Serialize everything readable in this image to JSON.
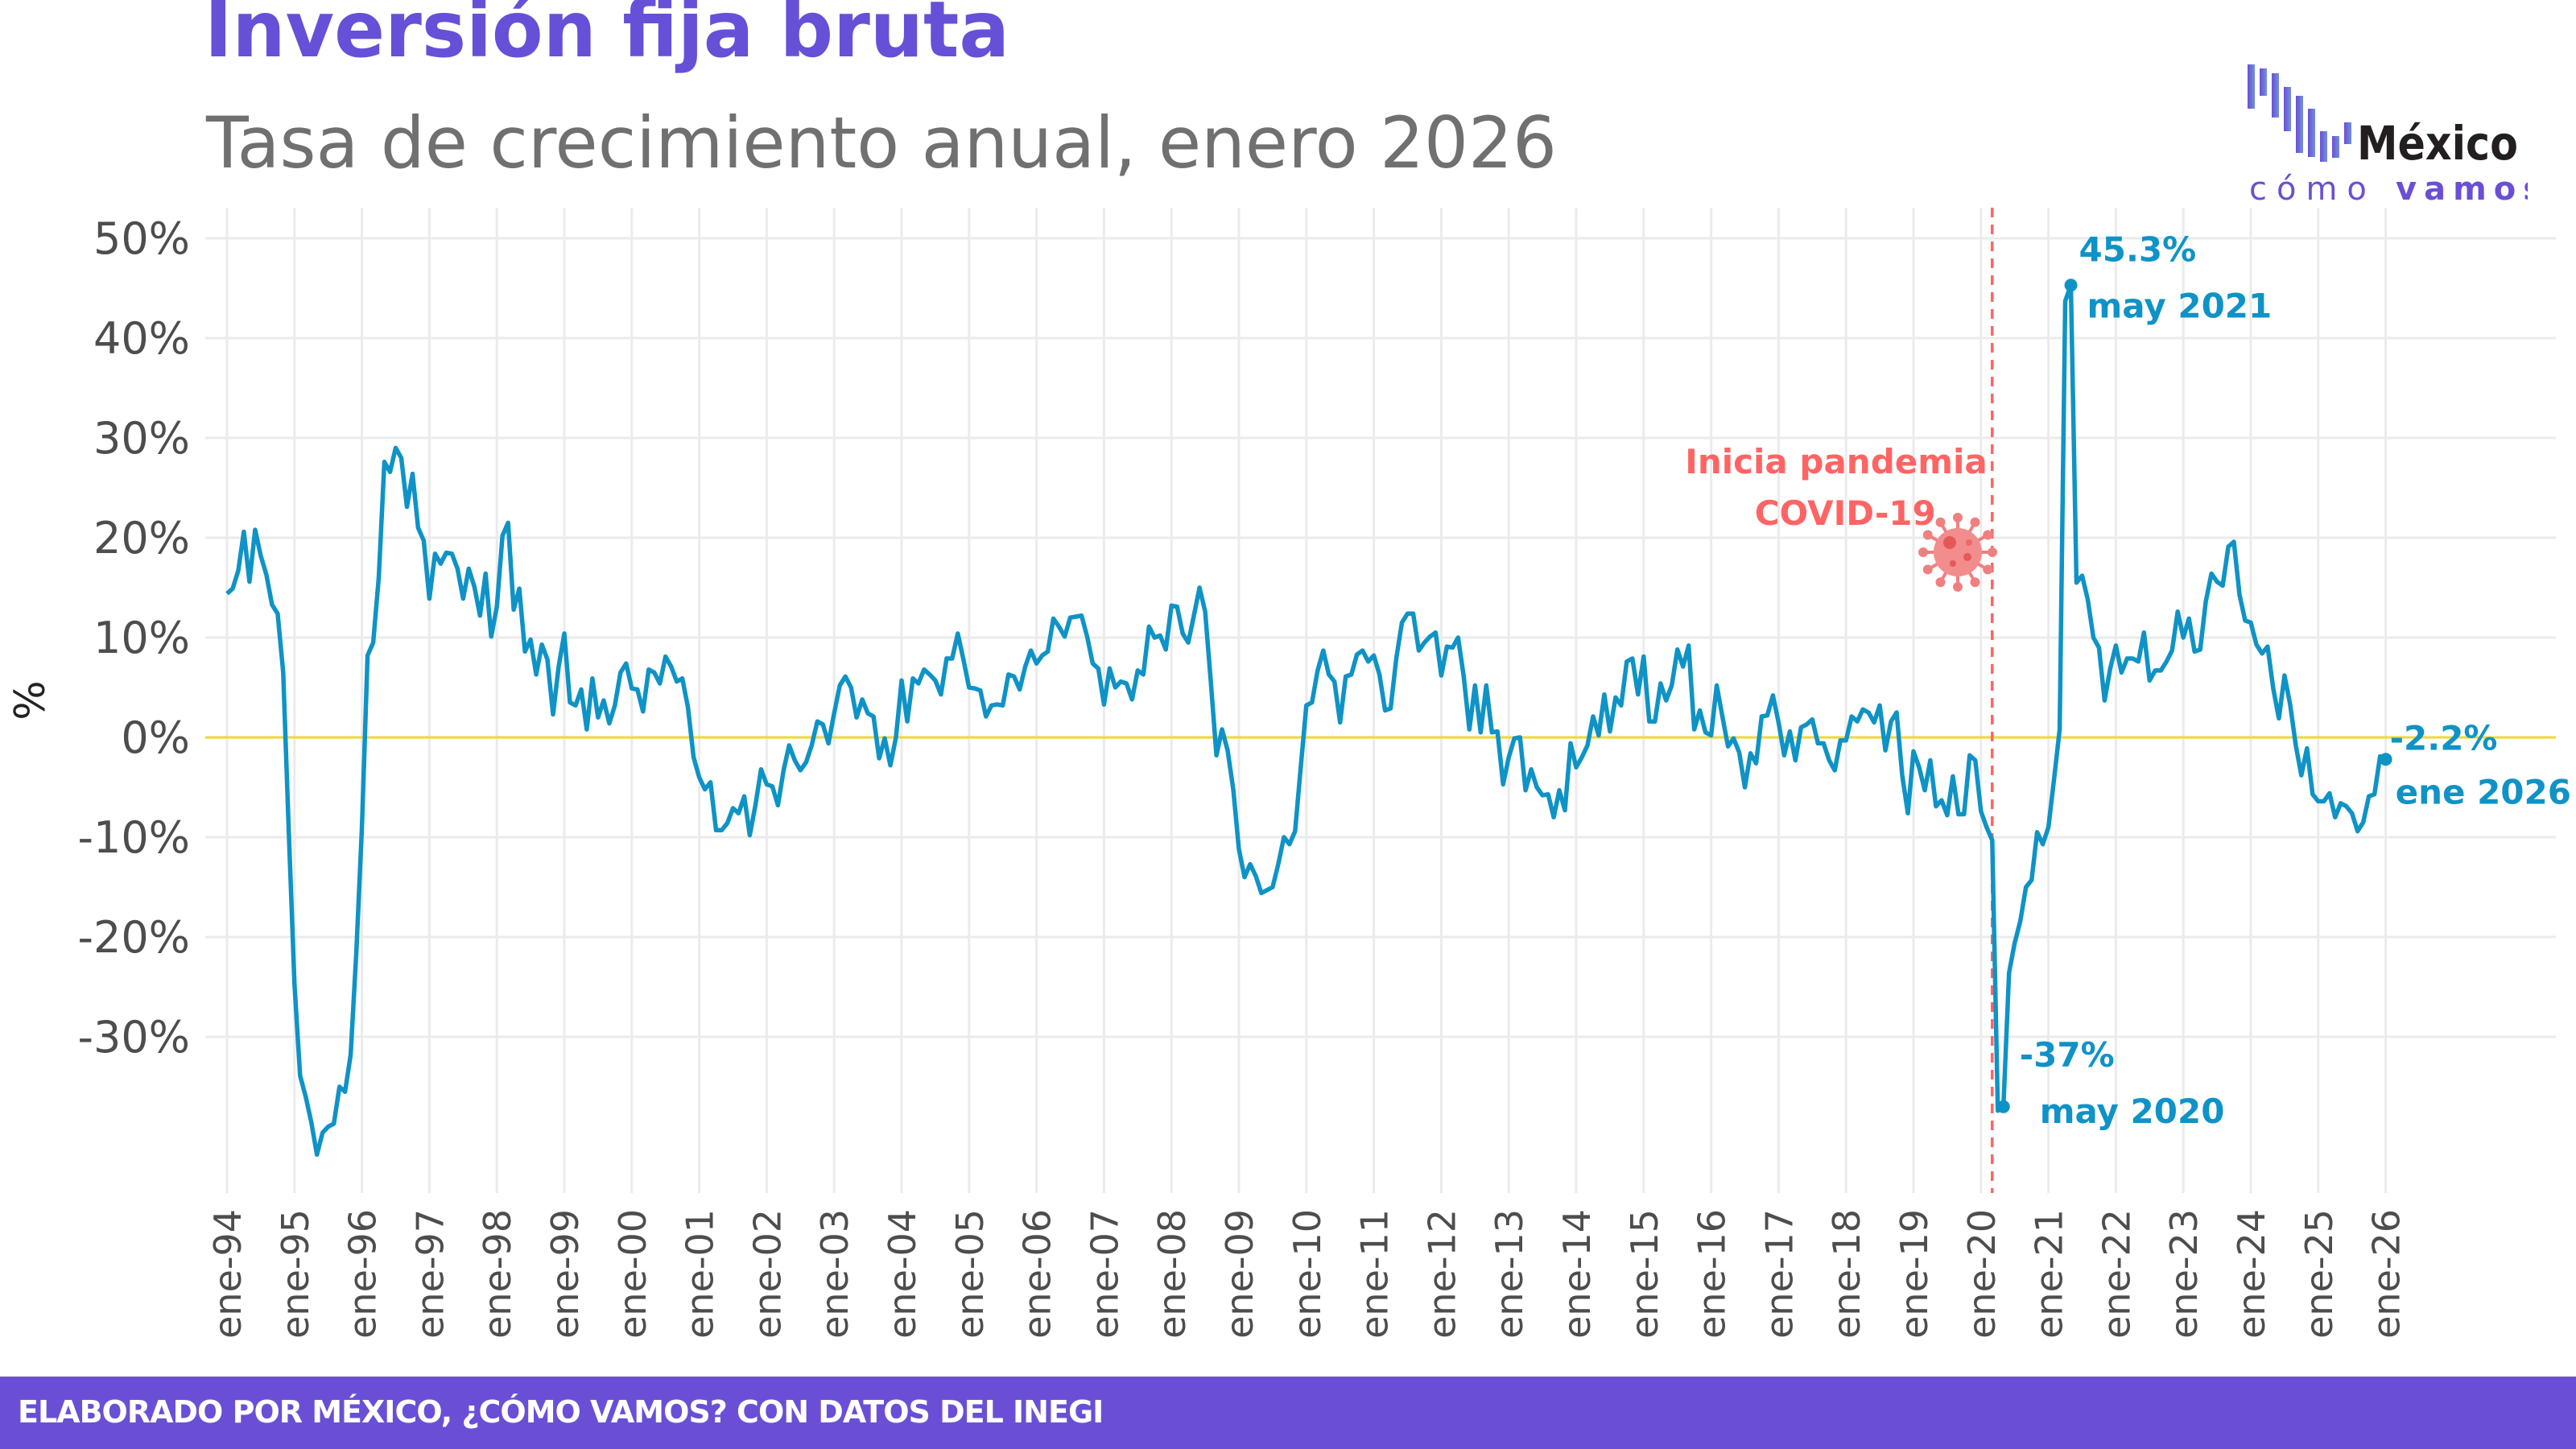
{
  "header": {
    "title": "Inversión fija bruta",
    "subtitle": "Tasa de crecimiento anual, enero 2026"
  },
  "logo": {
    "word1": "México",
    "word2a": "cómo",
    "word2b": "vamos"
  },
  "footer": {
    "source": "ELABORADO POR MÉXICO, ¿CÓMO VAMOS? CON DATOS DEL INEGI"
  },
  "colors": {
    "title": "#6650d8",
    "subtitle": "#707070",
    "line": "#0f93c6",
    "zero_line": "#ecd93a",
    "pandemic": "#ff6464",
    "footer": "#6a4fd6",
    "grid": "#ebebeb"
  },
  "chart_data": {
    "type": "line",
    "title": "Inversión fija bruta",
    "subtitle": "Tasa de crecimiento anual, enero 2026",
    "ylabel": "%",
    "xlabel": "",
    "frequency": "monthly",
    "ylim": [
      -45,
      52
    ],
    "yticks": [
      50,
      40,
      30,
      20,
      10,
      0,
      -10,
      -20,
      -30
    ],
    "ytick_labels": [
      "50%",
      "40%",
      "30%",
      "20%",
      "10%",
      "0%",
      "-10%",
      "-20%",
      "-30%"
    ],
    "xtick_labels": [
      "ene-94",
      "ene-95",
      "ene-96",
      "ene-97",
      "ene-98",
      "ene-99",
      "ene-00",
      "ene-01",
      "ene-02",
      "ene-03",
      "ene-04",
      "ene-05",
      "ene-06",
      "ene-07",
      "ene-08",
      "ene-09",
      "ene-10",
      "ene-11",
      "ene-12",
      "ene-13",
      "ene-14",
      "ene-15",
      "ene-16",
      "ene-17",
      "ene-18",
      "ene-19",
      "ene-20",
      "ene-21",
      "ene-22",
      "ene-23",
      "ene-24",
      "ene-25",
      "ene-26"
    ],
    "grid": true,
    "values_by_year": {
      "1994": [
        14.4,
        14.9,
        16.7,
        20.6,
        15.6,
        20.8,
        18.2,
        16.3,
        13.3,
        12.4,
        6.5,
        -9.6
      ],
      "1995": [
        -24.7,
        -33.9,
        -36,
        -38.6,
        -41.8,
        -39.6,
        -39,
        -38.7,
        -35,
        -35.5,
        -31.8,
        -21.6
      ],
      "1996": [
        -9,
        8.2,
        9.5,
        16,
        27.6,
        26.6,
        29,
        28,
        23.1,
        26.4,
        21,
        19.7
      ],
      "1997": [
        13.9,
        18.4,
        17.4,
        18.5,
        18.4,
        16.9,
        13.9,
        16.9,
        15.1,
        12.2,
        16.4,
        10.1
      ],
      "1998": [
        13.1,
        20.2,
        21.5,
        12.8,
        14.9,
        8.6,
        9.8,
        6.3,
        9.3,
        7.8,
        2.3,
        7.1
      ],
      "1999": [
        10.4,
        3.5,
        3.2,
        4.8,
        0.8,
        5.9,
        2,
        3.7,
        1.4,
        3.2,
        6.5,
        7.4
      ],
      "2000": [
        4.9,
        4.8,
        2.6,
        6.8,
        6.5,
        5.4,
        8.1,
        7.1,
        5.6,
        5.9,
        3,
        -2
      ],
      "2001": [
        -4,
        -5.2,
        -4.5,
        -9.3,
        -9.3,
        -8.6,
        -7.1,
        -7.6,
        -5.9,
        -9.8,
        -6.8,
        -3.2
      ],
      "2002": [
        -4.7,
        -4.9,
        -6.8,
        -3.3,
        -0.8,
        -2.3,
        -3.3,
        -2.5,
        -0.8,
        1.6,
        1.3,
        -0.6
      ],
      "2003": [
        2.4,
        5.2,
        6.1,
        5,
        2,
        3.8,
        2.4,
        2.1,
        -2.1,
        -0.1,
        -2.8,
        0
      ],
      "2004": [
        5.7,
        1.6,
        5.9,
        5.4,
        6.8,
        6.3,
        5.7,
        4.3,
        7.9,
        7.9,
        10.4,
        7.8
      ],
      "2005": [
        5,
        4.9,
        4.7,
        2.1,
        3.2,
        3.3,
        3.2,
        6.3,
        6.1,
        4.8,
        7.1,
        8.7
      ],
      "2006": [
        7.4,
        8.2,
        8.6,
        11.9,
        11.1,
        10.1,
        12,
        12.1,
        12.2,
        10.1,
        7.4,
        6.9
      ],
      "2007": [
        3.3,
        6.9,
        5,
        5.6,
        5.4,
        3.8,
        6.7,
        6.3,
        11.1,
        10,
        10.2,
        8.8
      ],
      "2008": [
        13.2,
        13.1,
        10.4,
        9.5,
        12.2,
        15,
        12.6,
        5.6,
        -1.8,
        0.8,
        -1.3,
        -5.2
      ],
      "2009": [
        -11.2,
        -14,
        -12.7,
        -13.9,
        -15.6,
        -15.3,
        -15,
        -12.7,
        -10,
        -10.7,
        -9.4,
        -3
      ],
      "2010": [
        3.2,
        3.5,
        6.7,
        8.7,
        6.3,
        5.6,
        1.5,
        6.1,
        6.3,
        8.3,
        8.7,
        7.6
      ],
      "2011": [
        8.2,
        6.3,
        2.7,
        2.9,
        7.9,
        11.5,
        12.4,
        12.4,
        8.7,
        9.5,
        10.1,
        10.5
      ],
      "2012": [
        6.2,
        9.1,
        9,
        10,
        6.1,
        0.8,
        5.2,
        0.5,
        5.2,
        0.5,
        0.6,
        -4.7
      ],
      "2013": [
        -2,
        -0.1,
        0,
        -5.3,
        -3.2,
        -5,
        -5.8,
        -5.7,
        -8,
        -5.3,
        -7.3,
        -0.6
      ],
      "2014": [
        -3,
        -2,
        -0.8,
        2.1,
        0.2,
        4.3,
        0.6,
        4,
        3.2,
        7.6,
        7.9,
        4.3
      ],
      "2015": [
        8.1,
        1.6,
        1.6,
        5.4,
        3.7,
        5.2,
        8.8,
        7.1,
        9.2,
        0.8,
        2.7,
        0.5
      ],
      "2016": [
        0.2,
        5.2,
        2.1,
        -0.9,
        -0.1,
        -1.5,
        -5,
        -1.6,
        -2.6,
        2.1,
        2.2,
        4.2
      ],
      "2017": [
        1.5,
        -1.8,
        0.6,
        -2.3,
        1,
        1.3,
        1.8,
        -0.6,
        -0.6,
        -2.3,
        -3.3,
        -0.3
      ],
      "2018": [
        -0.3,
        2.1,
        1.6,
        2.8,
        2.5,
        1.5,
        3.2,
        -1.3,
        1.6,
        2.5,
        -3.8,
        -7.6
      ],
      "2019": [
        -1.4,
        -3,
        -5.3,
        -2.3,
        -6.9,
        -6.3,
        -7.8,
        -3.9,
        -7.7,
        -7.7,
        -1.8,
        -2.3
      ],
      "2020": [
        -7.4,
        -9,
        -10.3,
        -37.4,
        -37,
        -23.6,
        -20.6,
        -18.4,
        -15,
        -14.3,
        -9.5,
        -10.7
      ],
      "2021": [
        -9,
        -4.2,
        0.8,
        43.7,
        45.3,
        15.5,
        16.2,
        13.8,
        10,
        9,
        3.7,
        6.9
      ],
      "2022": [
        9.2,
        6.5,
        7.9,
        7.9,
        7.6,
        10.5,
        5.7,
        6.7,
        6.7,
        7.6,
        8.7,
        12.6
      ],
      "2023": [
        10,
        11.9,
        8.6,
        8.8,
        13.6,
        16.4,
        15.6,
        15.2,
        19.1,
        19.6,
        14.3,
        11.7
      ],
      "2024": [
        11.5,
        9.3,
        8.4,
        9.1,
        4.9,
        1.9,
        6.2,
        3.3,
        -0.8,
        -3.8,
        -1.1,
        -5.7
      ],
      "2025": [
        -6.4,
        -6.4,
        -5.6,
        -8,
        -6.6,
        -6.9,
        -7.6,
        -9.4,
        -8.5,
        -5.9,
        -5.7,
        -1.9
      ],
      "2026": [
        -2.2
      ]
    },
    "reference_line": {
      "y": 0
    },
    "event_marker": {
      "date": "2020-03",
      "label_line1": "Inicia pandemia",
      "label_line2": "COVID-19",
      "icon": "virus-icon"
    },
    "annotations": [
      {
        "date": "2021-05",
        "value_label": "45.3%",
        "date_label": "may 2021"
      },
      {
        "date": "2020-05",
        "value_label": "-37%",
        "date_label": "may 2020"
      },
      {
        "date": "2026-01",
        "value_label": "-2.2%",
        "date_label": "ene 2026"
      }
    ]
  }
}
